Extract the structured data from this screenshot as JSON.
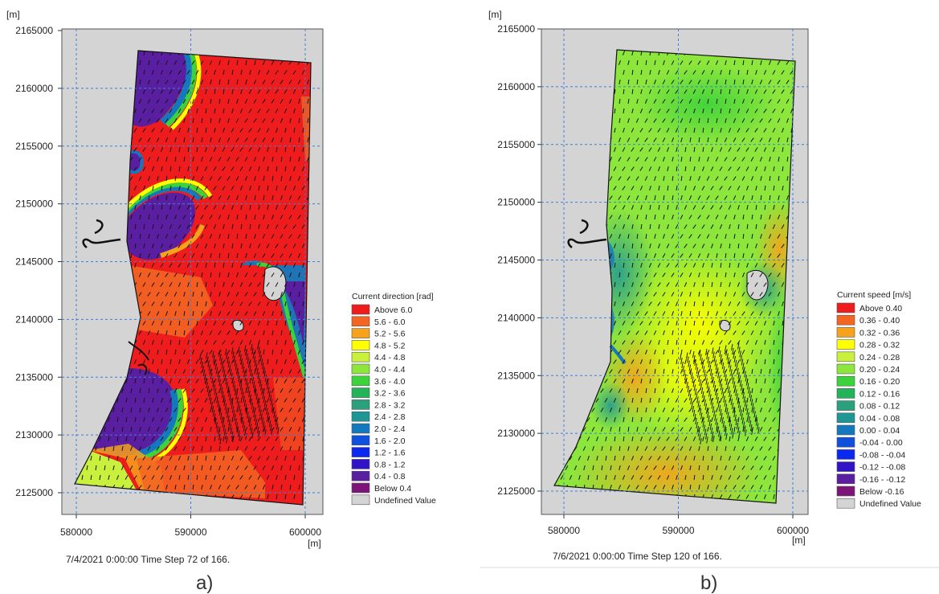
{
  "chart_data": [
    {
      "type": "heatmap",
      "panel_label": "a)",
      "unit_y": "[m]",
      "unit_x": "[m]",
      "xlim": [
        578000,
        601500
      ],
      "ylim": [
        2123200,
        2165000
      ],
      "x_ticks": [
        "580000",
        "590000",
        "600000"
      ],
      "y_ticks": [
        "2165000",
        "2160000",
        "2155000",
        "2150000",
        "2145000",
        "2140000",
        "2135000",
        "2130000",
        "2125000"
      ],
      "grid": true,
      "legend_title": "Current direction [rad]",
      "legend_placement": "right",
      "legend": [
        {
          "label": "Above 6.0",
          "color": "#ee1c1c"
        },
        {
          "label": "5.6 - 6.0",
          "color": "#f26522"
        },
        {
          "label": "5.2 - 5.6",
          "color": "#f7a21b"
        },
        {
          "label": "4.8 - 5.2",
          "color": "#ffff00"
        },
        {
          "label": "4.4 - 4.8",
          "color": "#c8f03c"
        },
        {
          "label": "4.0 - 4.4",
          "color": "#8ce63c"
        },
        {
          "label": "3.6 - 4.0",
          "color": "#3cd23c"
        },
        {
          "label": "3.2 - 3.6",
          "color": "#23b45a"
        },
        {
          "label": "2.8 - 3.2",
          "color": "#2aa07d"
        },
        {
          "label": "2.4 - 2.8",
          "color": "#1e9696"
        },
        {
          "label": "2.0 - 2.4",
          "color": "#1478be"
        },
        {
          "label": "1.6 - 2.0",
          "color": "#0f50dc"
        },
        {
          "label": "1.2 - 1.6",
          "color": "#0a28f0"
        },
        {
          "label": "0.8 - 1.2",
          "color": "#3214c8"
        },
        {
          "label": "0.4 - 0.8",
          "color": "#5a1ea0"
        },
        {
          "label": "Below 0.4",
          "color": "#7d1478"
        },
        {
          "label": "Undefined Value",
          "color": "#d4d4d4"
        }
      ],
      "status": "7/4/2021 0:00:00  Time Step 72 of 166."
    },
    {
      "type": "heatmap",
      "panel_label": "b)",
      "unit_y": "[m]",
      "unit_x": "[m]",
      "xlim": [
        578000,
        601500
      ],
      "ylim": [
        2123200,
        2165000
      ],
      "x_ticks": [
        "580000",
        "590000",
        "600000"
      ],
      "y_ticks": [
        "2165000",
        "2160000",
        "2155000",
        "2150000",
        "2145000",
        "2140000",
        "2135000",
        "2130000",
        "2125000"
      ],
      "grid": true,
      "legend_title": "Current speed [m/s]",
      "legend_placement": "right",
      "legend": [
        {
          "label": "Above  0.40",
          "color": "#ee1c1c"
        },
        {
          "label": "0.36 -  0.40",
          "color": "#f26522"
        },
        {
          "label": "0.32 -  0.36",
          "color": "#f7a21b"
        },
        {
          "label": "0.28 -  0.32",
          "color": "#ffff00"
        },
        {
          "label": "0.24 -  0.28",
          "color": "#c8f03c"
        },
        {
          "label": "0.20 -  0.24",
          "color": "#8ce63c"
        },
        {
          "label": "0.16 -  0.20",
          "color": "#3cd23c"
        },
        {
          "label": "0.12 -  0.16",
          "color": "#23b45a"
        },
        {
          "label": "0.08 -  0.12",
          "color": "#2aa07d"
        },
        {
          "label": "0.04 -  0.08",
          "color": "#1e9696"
        },
        {
          "label": "0.00 -  0.04",
          "color": "#1478be"
        },
        {
          "label": "-0.04 -  0.00",
          "color": "#0f50dc"
        },
        {
          "label": "-0.08 - -0.04",
          "color": "#0a28f0"
        },
        {
          "label": "-0.12 - -0.08",
          "color": "#3214c8"
        },
        {
          "label": "-0.16 - -0.12",
          "color": "#5a1ea0"
        },
        {
          "label": "Below -0.16",
          "color": "#7d1478"
        },
        {
          "label": "Undefined Value",
          "color": "#d4d4d4"
        }
      ],
      "status": "7/6/2021 0:00:00  Time Step 120 of 166."
    }
  ],
  "colors": {
    "plot_background": "#d4d4d4",
    "gridline": "#3b7fd6",
    "arrow": "#141414"
  }
}
